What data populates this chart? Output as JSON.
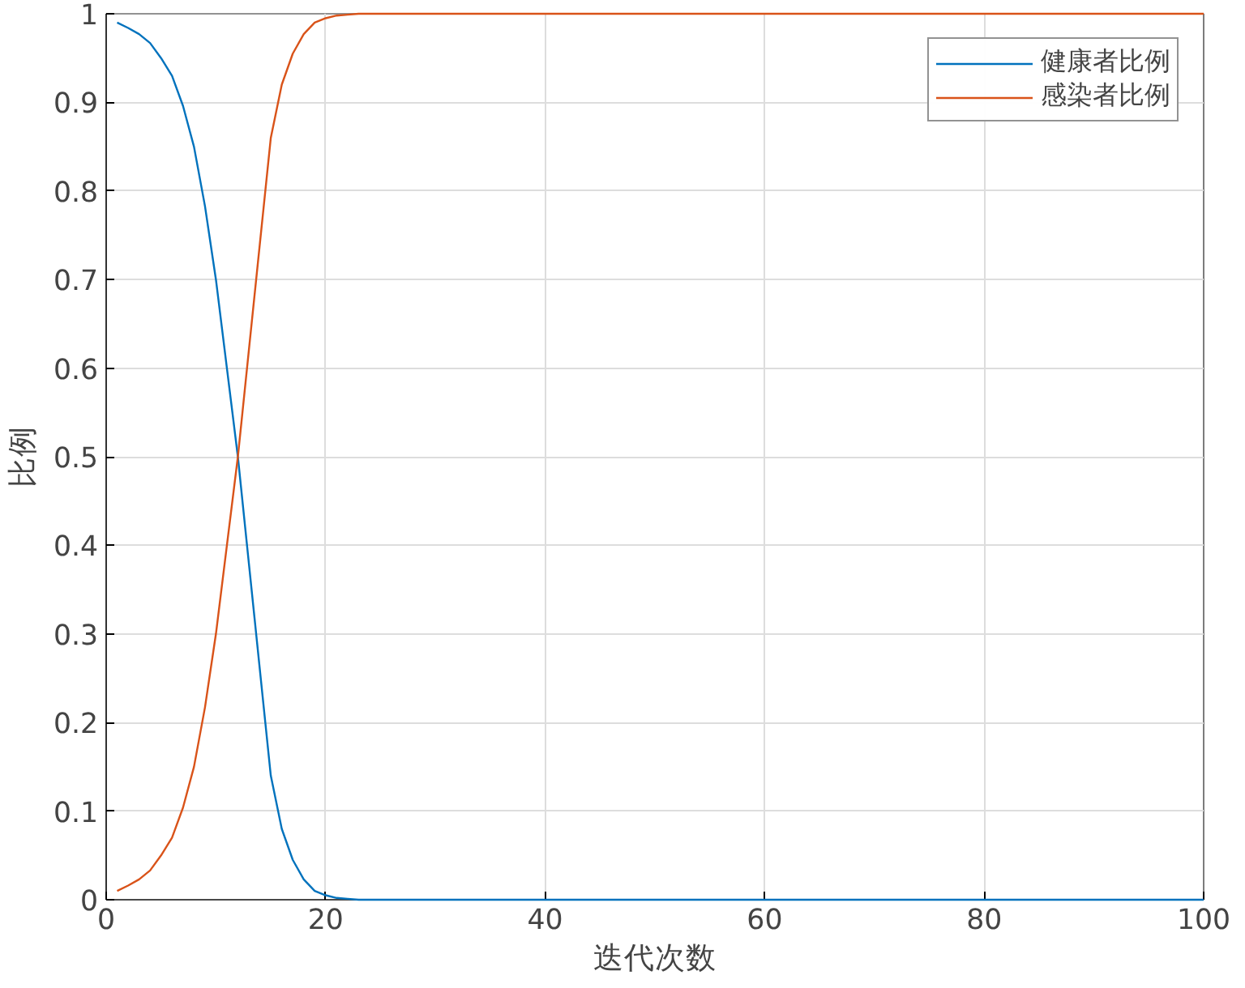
{
  "chart_data": {
    "type": "line",
    "xlabel": "迭代次数",
    "ylabel": "比例",
    "x": [
      1,
      2,
      3,
      4,
      5,
      6,
      7,
      8,
      9,
      10,
      11,
      12,
      13,
      14,
      15,
      16,
      17,
      18,
      19,
      20,
      21,
      22,
      23,
      24,
      25,
      30,
      40,
      60,
      80,
      100
    ],
    "series": [
      {
        "name": "健康者比例",
        "color": "#0072bd",
        "values": [
          0.99,
          0.984,
          0.977,
          0.967,
          0.95,
          0.93,
          0.896,
          0.85,
          0.783,
          0.7,
          0.6,
          0.5,
          0.38,
          0.26,
          0.14,
          0.08,
          0.045,
          0.023,
          0.01,
          0.005,
          0.002,
          0.001,
          0,
          0,
          0,
          0,
          0,
          0,
          0,
          0
        ]
      },
      {
        "name": "感染者比例",
        "color": "#d95319",
        "values": [
          0.01,
          0.016,
          0.023,
          0.033,
          0.05,
          0.07,
          0.104,
          0.15,
          0.217,
          0.3,
          0.4,
          0.5,
          0.62,
          0.74,
          0.86,
          0.92,
          0.955,
          0.977,
          0.99,
          0.995,
          0.998,
          0.999,
          1,
          1,
          1,
          1,
          1,
          1,
          1,
          1
        ]
      }
    ],
    "xlim": [
      0,
      100
    ],
    "xticks": [
      0,
      20,
      40,
      60,
      80,
      100
    ],
    "ylim": [
      0,
      1
    ],
    "yticks": [
      0,
      0.1,
      0.2,
      0.3,
      0.4,
      0.5,
      0.6,
      0.7,
      0.8,
      0.9,
      1
    ],
    "grid": true,
    "legend": "top right",
    "line_style": "solid",
    "marker": "none"
  }
}
